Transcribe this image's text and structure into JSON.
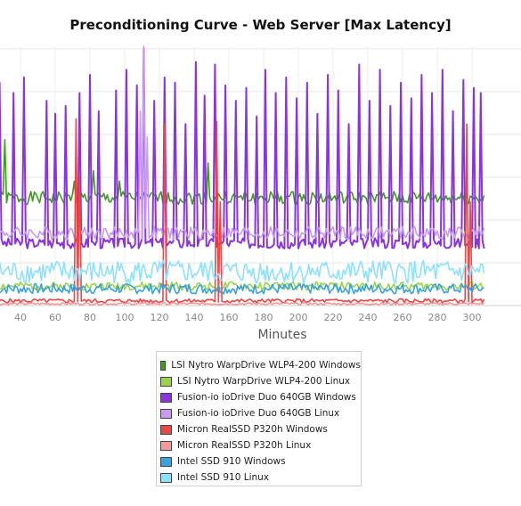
{
  "chart_data": {
    "type": "line",
    "title": "Preconditioning Curve - Web Server [Max Latency]",
    "xlabel": "Minutes",
    "ylabel": "",
    "xlim": [
      27,
      307
    ],
    "ylim": [
      0,
      100
    ],
    "x_ticks": [
      "40",
      "60",
      "80",
      "100",
      "120",
      "140",
      "160",
      "180",
      "200",
      "220",
      "240",
      "260",
      "280",
      "300"
    ],
    "grid": true,
    "legend_position": "bottom-center",
    "series": [
      {
        "name": "LSI Nytro WarpDrive WLP4-200 Windows",
        "color": "#3c9e19",
        "base": 41.5,
        "noise": 2.5,
        "spikes": [
          [
            31,
            64
          ],
          [
            71,
            48
          ],
          [
            82,
            52
          ],
          [
            97,
            48
          ],
          [
            148,
            55
          ]
        ],
        "seed": 1
      },
      {
        "name": "LSI Nytro WarpDrive WLP4-200 Linux",
        "color": "#99d44a",
        "base": 7.5,
        "noise": 1.6,
        "spikes": [],
        "seed": 2
      },
      {
        "name": "Fusion-io ioDrive Duo 640GB Windows",
        "color": "#8a33e0",
        "base": 24,
        "noise": 2.0,
        "spikes": [
          [
            28,
            86
          ],
          [
            36,
            82
          ],
          [
            42,
            88
          ],
          [
            55,
            79
          ],
          [
            60,
            74
          ],
          [
            66,
            77
          ],
          [
            74,
            82
          ],
          [
            80,
            89
          ],
          [
            85,
            75
          ],
          [
            95,
            83
          ],
          [
            101,
            91
          ],
          [
            107,
            85
          ],
          [
            111,
            99
          ],
          [
            117,
            79
          ],
          [
            123,
            88
          ],
          [
            129,
            86
          ],
          [
            135,
            70
          ],
          [
            141,
            94
          ],
          [
            146,
            81
          ],
          [
            152,
            93
          ],
          [
            158,
            85
          ],
          [
            164,
            79
          ],
          [
            170,
            84
          ],
          [
            176,
            73
          ],
          [
            181,
            91
          ],
          [
            187,
            82
          ],
          [
            193,
            88
          ],
          [
            199,
            80
          ],
          [
            205,
            86
          ],
          [
            211,
            74
          ],
          [
            217,
            89
          ],
          [
            223,
            83
          ],
          [
            229,
            70
          ],
          [
            235,
            93
          ],
          [
            241,
            79
          ],
          [
            247,
            91
          ],
          [
            253,
            77
          ],
          [
            259,
            86
          ],
          [
            265,
            80
          ],
          [
            271,
            89
          ],
          [
            277,
            82
          ],
          [
            283,
            91
          ],
          [
            289,
            75
          ],
          [
            295,
            87
          ],
          [
            301,
            84
          ],
          [
            305,
            82
          ]
        ],
        "seed": 3
      },
      {
        "name": "Fusion-io ioDrive Duo 640GB Linux",
        "color": "#c59af0",
        "base": 28,
        "noise": 2.5,
        "spikes": [
          [
            111,
            100
          ],
          [
            113,
            65
          ],
          [
            109,
            75
          ]
        ],
        "seed": 4
      },
      {
        "name": "Micron RealSSD P320h Windows",
        "color": "#f04545",
        "base": 1.8,
        "noise": 0.8,
        "spikes": [
          [
            72,
            72
          ],
          [
            74,
            50
          ],
          [
            123,
            70
          ],
          [
            153,
            71
          ],
          [
            155,
            40
          ],
          [
            297,
            70
          ],
          [
            299,
            40
          ]
        ],
        "seed": 5
      },
      {
        "name": "Micron RealSSD P320h Linux",
        "color": "#f59a9a",
        "base": 0.7,
        "noise": 0.4,
        "spikes": [],
        "seed": 6
      },
      {
        "name": "Intel SSD 910 Windows",
        "color": "#3aa2e0",
        "base": 6.5,
        "noise": 2.0,
        "spikes": [],
        "seed": 7
      },
      {
        "name": "Intel SSD 910 Linux",
        "color": "#8be1ff",
        "base": 13,
        "noise": 4.5,
        "spikes": [],
        "seed": 8
      }
    ]
  }
}
